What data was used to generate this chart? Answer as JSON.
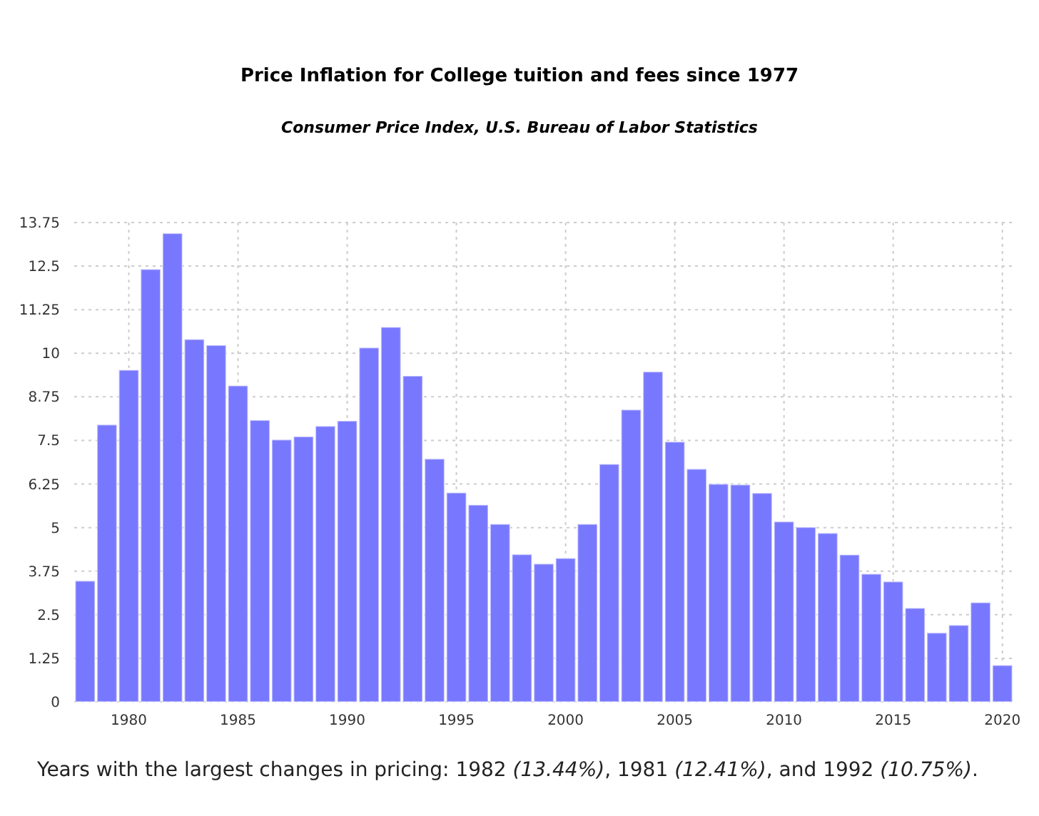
{
  "chart_data": {
    "type": "bar",
    "title": "Price Inflation for College tuition and fees since 1977",
    "subtitle": "Consumer Price Index, U.S. Bureau of Labor Statistics",
    "x": [
      1978,
      1979,
      1980,
      1981,
      1982,
      1983,
      1984,
      1985,
      1986,
      1987,
      1988,
      1989,
      1990,
      1991,
      1992,
      1993,
      1994,
      1995,
      1996,
      1997,
      1998,
      1999,
      2000,
      2001,
      2002,
      2003,
      2004,
      2005,
      2006,
      2007,
      2008,
      2009,
      2010,
      2011,
      2012,
      2013,
      2014,
      2015,
      2016,
      2017,
      2018,
      2019,
      2020
    ],
    "values": [
      3.47,
      7.95,
      9.52,
      12.41,
      13.44,
      10.4,
      10.23,
      9.07,
      8.08,
      7.52,
      7.61,
      7.91,
      8.06,
      10.16,
      10.75,
      9.35,
      6.97,
      6.0,
      5.65,
      5.1,
      4.23,
      3.96,
      4.12,
      5.1,
      6.82,
      8.38,
      9.47,
      7.46,
      6.68,
      6.25,
      6.23,
      5.99,
      5.17,
      5.01,
      4.84,
      4.22,
      3.67,
      3.45,
      2.69,
      1.98,
      2.2,
      2.85,
      1.05
    ],
    "color": "#7878ff",
    "xlim": [
      1977.5,
      2020.5
    ],
    "xticks": [
      1980,
      1985,
      1990,
      1995,
      2000,
      2005,
      2010,
      2015,
      2020
    ],
    "ylim": [
      0,
      13.75
    ],
    "yticks": [
      0,
      1.25,
      2.5,
      3.75,
      5,
      6.25,
      7.5,
      8.75,
      10,
      11.25,
      12.5,
      13.75
    ],
    "grid": true,
    "annotations": [
      "Years with the largest changes in pricing: 1982 (13.44%), 1981 (12.41%), and 1992 (10.75%)."
    ]
  }
}
